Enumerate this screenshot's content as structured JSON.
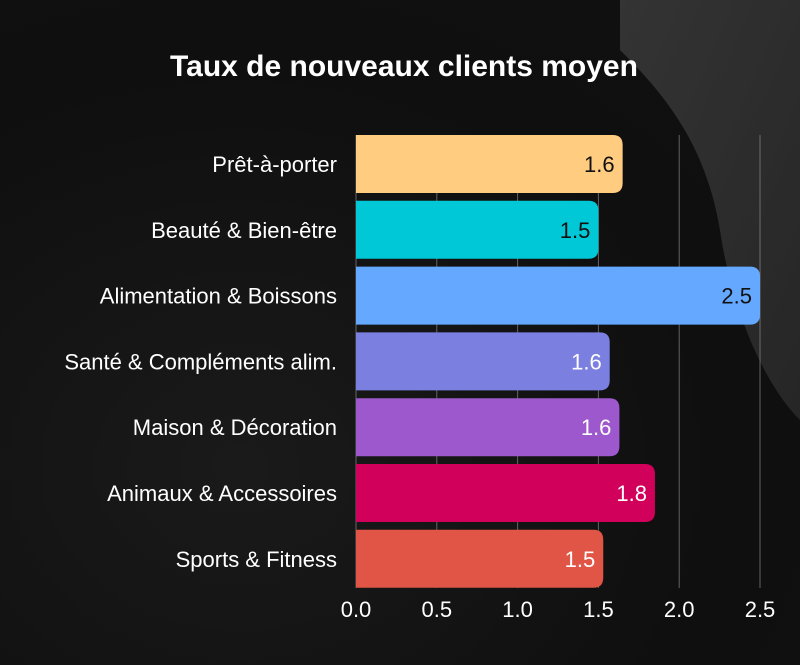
{
  "chart_data": {
    "type": "bar",
    "orientation": "horizontal",
    "title": "Taux de nouveaux clients moyen",
    "xlabel": "",
    "ylabel": "",
    "categories": [
      "Prêt-à-porter",
      "Beauté & Bien-être",
      "Alimentation & Boissons",
      "Santé & Compléments alim.",
      "Maison & Décoration",
      "Animaux & Accessoires",
      "Sports & Fitness"
    ],
    "values": [
      1.65,
      1.5,
      2.5,
      1.57,
      1.63,
      1.85,
      1.53
    ],
    "value_labels": [
      "1.6",
      "1.5",
      "2.5",
      "1.6",
      "1.6",
      "1.8",
      "1.5"
    ],
    "bar_colors": [
      "#FFCC80",
      "#00C8D7",
      "#64A8FF",
      "#7B7FE0",
      "#9C58CC",
      "#D1005A",
      "#E05545"
    ],
    "value_label_colors": [
      "#111111",
      "#111111",
      "#111111",
      "#ffffff",
      "#ffffff",
      "#ffffff",
      "#ffffff"
    ],
    "xlim": [
      0,
      2.5
    ],
    "xticks": [
      "0.0",
      "0.5",
      "1.0",
      "1.5",
      "2.0",
      "2.5"
    ],
    "grid": "vertical",
    "legend": "none"
  }
}
